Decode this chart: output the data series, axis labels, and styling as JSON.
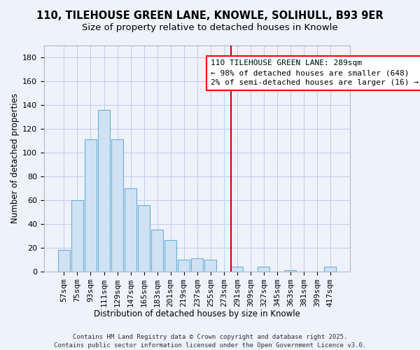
{
  "title1": "110, TILEHOUSE GREEN LANE, KNOWLE, SOLIHULL, B93 9ER",
  "title2": "Size of property relative to detached houses in Knowle",
  "xlabel": "Distribution of detached houses by size in Knowle",
  "ylabel": "Number of detached properties",
  "bar_labels": [
    "57sqm",
    "75sqm",
    "93sqm",
    "111sqm",
    "129sqm",
    "147sqm",
    "165sqm",
    "183sqm",
    "201sqm",
    "219sqm",
    "237sqm",
    "255sqm",
    "273sqm",
    "291sqm",
    "309sqm",
    "327sqm",
    "345sqm",
    "363sqm",
    "381sqm",
    "399sqm",
    "417sqm"
  ],
  "bar_values": [
    18,
    60,
    111,
    136,
    111,
    70,
    56,
    35,
    26,
    10,
    11,
    10,
    0,
    4,
    0,
    4,
    0,
    1,
    0,
    0,
    4
  ],
  "bar_color": "#cfe2f3",
  "bar_edge_color": "#6baed6",
  "ylim": [
    0,
    190
  ],
  "yticks": [
    0,
    20,
    40,
    60,
    80,
    100,
    120,
    140,
    160,
    180
  ],
  "vline_x_index": 13,
  "vline_color": "#cc0000",
  "annotation_title": "110 TILEHOUSE GREEN LANE: 289sqm",
  "annotation_line1": "← 98% of detached houses are smaller (648)",
  "annotation_line2": "2% of semi-detached houses are larger (16) →",
  "footer1": "Contains HM Land Registry data © Crown copyright and database right 2025.",
  "footer2": "Contains public sector information licensed under the Open Government Licence v3.0.",
  "bg_color": "#eef2fb",
  "plot_bg_color": "#eef2fb",
  "grid_color": "#c0cce8",
  "title_fontsize": 10.5,
  "subtitle_fontsize": 9.5,
  "axis_fontsize": 8.5,
  "tick_fontsize": 8,
  "annotation_fontsize": 8
}
